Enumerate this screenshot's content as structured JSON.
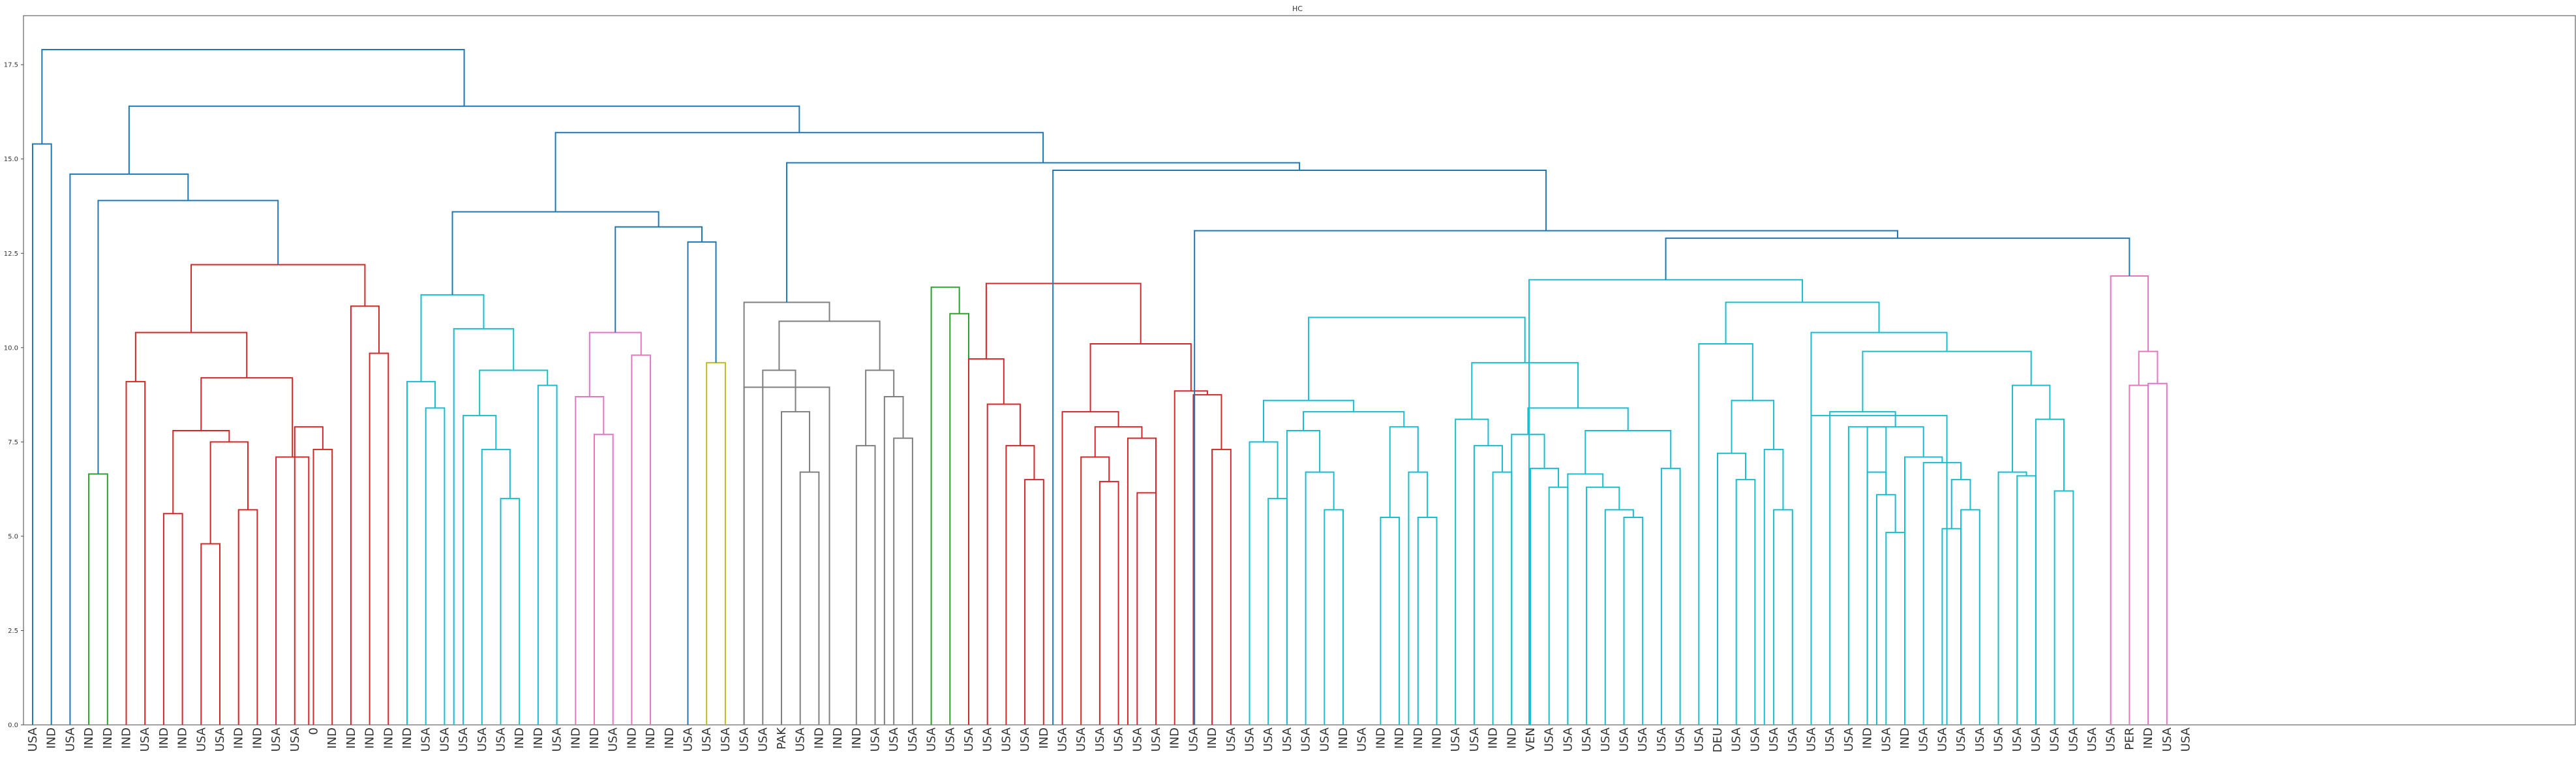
{
  "chart_data": {
    "type": "dendrogram",
    "title": "HC",
    "xlabel": "",
    "ylabel": "",
    "ylim": [
      0,
      18.8
    ],
    "yticks": [
      0.0,
      2.5,
      5.0,
      7.5,
      10.0,
      12.5,
      15.0,
      17.5
    ],
    "ytick_labels": [
      "0.0",
      "2.5",
      "5.0",
      "7.5",
      "10.0",
      "12.5",
      "15.0",
      "17.5"
    ],
    "grid": false,
    "leaf_labels": [
      "USA",
      "IND",
      "USA",
      "IND",
      "IND",
      "IND",
      "USA",
      "IND",
      "IND",
      "USA",
      "USA",
      "IND",
      "IND",
      "USA",
      "USA",
      "0",
      "IND",
      "IND",
      "IND",
      "IND",
      "IND",
      "USA",
      "USA",
      "USA",
      "USA",
      "USA",
      "IND",
      "IND",
      "USA",
      "IND",
      "IND",
      "USA",
      "IND",
      "IND",
      "IND",
      "USA",
      "USA",
      "USA",
      "USA",
      "USA",
      "PAK",
      "USA",
      "IND",
      "IND",
      "IND",
      "USA",
      "USA",
      "USA",
      "USA",
      "USA",
      "USA",
      "USA",
      "USA",
      "USA",
      "IND",
      "USA",
      "USA",
      "USA",
      "USA",
      "USA",
      "USA",
      "IND",
      "USA",
      "IND",
      "USA",
      "USA",
      "USA",
      "USA",
      "USA",
      "USA",
      "IND",
      "USA",
      "IND",
      "IND",
      "IND",
      "IND",
      "USA",
      "USA",
      "IND",
      "IND",
      "VEN",
      "USA",
      "USA",
      "USA",
      "USA",
      "USA",
      "USA",
      "USA",
      "USA",
      "USA",
      "DEU",
      "USA",
      "USA",
      "USA",
      "USA",
      "USA",
      "USA",
      "USA",
      "IND",
      "USA",
      "IND",
      "USA",
      "USA",
      "USA",
      "USA",
      "USA",
      "USA",
      "USA",
      "USA",
      "USA",
      "USA",
      "USA",
      "PER",
      "IND",
      "USA",
      "USA"
    ],
    "link_colors": {
      "above": "#1f77b4",
      "c1": "#ff7f0e",
      "c2": "#2ca02c",
      "c3": "#d62728",
      "c4": "#9467bd",
      "c5": "#8c564b",
      "c6": "#e377c2",
      "c7": "#7f7f7f",
      "c8": "#bcbd22",
      "c9": "#17becf"
    },
    "links": [
      {
        "x": [
          0,
          1
        ],
        "h": 15.4,
        "c": "above"
      },
      {
        "x": [
          3,
          4
        ],
        "h": 6.65,
        "c": "c2"
      },
      {
        "x": [
          7,
          8
        ],
        "h": 5.6,
        "c": "c3"
      },
      {
        "x": [
          9,
          10
        ],
        "h": 4.8,
        "c": "c3"
      },
      {
        "x": [
          11,
          12
        ],
        "h": 5.7,
        "c": "c3"
      },
      {
        "x": [
          9.5,
          11.5
        ],
        "h": 7.5,
        "c": "c3"
      },
      {
        "x": [
          7.5,
          10.5
        ],
        "h": 7.8,
        "c": "c3"
      },
      {
        "x": [
          15,
          16
        ],
        "h": 7.3,
        "c": "c3"
      },
      {
        "x": [
          14,
          15.5
        ],
        "h": 7.9,
        "c": "c3"
      },
      {
        "x": [
          13,
          14.75
        ],
        "h": 7.1,
        "c": "c3"
      },
      {
        "x": [
          9,
          13.875
        ],
        "h": 9.2,
        "c": "c3"
      },
      {
        "x": [
          5,
          6
        ],
        "h": 9.1,
        "c": "c3"
      },
      {
        "x": [
          5.5,
          11.4375
        ],
        "h": 10.4,
        "c": "c3"
      },
      {
        "x": [
          18,
          19
        ],
        "h": 9.85,
        "c": "c3"
      },
      {
        "x": [
          17,
          18.5
        ],
        "h": 11.1,
        "c": "c3"
      },
      {
        "x": [
          8.46875,
          17.75
        ],
        "h": 12.2,
        "c": "c3"
      },
      {
        "x": [
          3.5,
          13.109375
        ],
        "h": 13.9,
        "c": "above"
      },
      {
        "x": [
          2,
          8.3046875
        ],
        "h": 14.6,
        "c": "above"
      },
      {
        "x": [
          21,
          22
        ],
        "h": 8.4,
        "c": "c9"
      },
      {
        "x": [
          20,
          21.5
        ],
        "h": 9.1,
        "c": "c9"
      },
      {
        "x": [
          25,
          26
        ],
        "h": 6.0,
        "c": "c9"
      },
      {
        "x": [
          24,
          25.5
        ],
        "h": 7.3,
        "c": "c9"
      },
      {
        "x": [
          23,
          24.75
        ],
        "h": 8.2,
        "c": "c9"
      },
      {
        "x": [
          27,
          28
        ],
        "h": 9.0,
        "c": "c9"
      },
      {
        "x": [
          23.875,
          27.5
        ],
        "h": 9.4,
        "c": "c9"
      },
      {
        "x": [
          22.5,
          25.6875
        ],
        "h": 10.5,
        "c": "c9"
      },
      {
        "x": [
          20.75,
          24.09375
        ],
        "h": 11.4,
        "c": "c9"
      },
      {
        "x": [
          30,
          31
        ],
        "h": 7.7,
        "c": "c6"
      },
      {
        "x": [
          29,
          30.5
        ],
        "h": 8.7,
        "c": "c6"
      },
      {
        "x": [
          32,
          33
        ],
        "h": 9.8,
        "c": "c6"
      },
      {
        "x": [
          29.75,
          32.5
        ],
        "h": 10.4,
        "c": "c6"
      },
      {
        "x": [
          36,
          37
        ],
        "h": 9.6,
        "c": "c8"
      },
      {
        "x": [
          35,
          36.5
        ],
        "h": 12.8,
        "c": "above"
      },
      {
        "x": [
          31.125,
          35.75
        ],
        "h": 13.2,
        "c": "above"
      },
      {
        "x": [
          22.421875,
          33.4375
        ],
        "h": 13.6,
        "c": "above"
      },
      {
        "x": [
          41,
          42
        ],
        "h": 6.7,
        "c": "c7"
      },
      {
        "x": [
          40,
          41.5
        ],
        "h": 8.3,
        "c": "c7"
      },
      {
        "x": [
          39,
          40.75
        ],
        "h": 9.4,
        "c": "c7"
      },
      {
        "x": [
          44,
          45
        ],
        "h": 7.4,
        "c": "c7"
      },
      {
        "x": [
          46,
          47
        ],
        "h": 7.6,
        "c": "c7"
      },
      {
        "x": [
          45.5,
          46.5
        ],
        "h": 8.7,
        "c": "c7"
      },
      {
        "x": [
          44.5,
          46
        ],
        "h": 9.4,
        "c": "c7"
      },
      {
        "x": [
          39.875,
          45.25
        ],
        "h": 10.7,
        "c": "c7"
      },
      {
        "x": [
          38,
          42.5625
        ],
        "h": 8.95,
        "c": "c7"
      },
      {
        "x": [
          38,
          42.5625
        ],
        "h": 11.2,
        "c": "c7"
      },
      {
        "x": [
          49,
          50
        ],
        "h": 10.9,
        "c": "c2"
      },
      {
        "x": [
          48,
          49.5
        ],
        "h": 11.6,
        "c": "c2"
      },
      {
        "x": [
          53,
          54
        ],
        "h": 6.5,
        "c": "c3"
      },
      {
        "x": [
          52,
          53.5
        ],
        "h": 7.4,
        "c": "c3"
      },
      {
        "x": [
          51,
          52.75
        ],
        "h": 8.5,
        "c": "c3"
      },
      {
        "x": [
          50,
          51.875
        ],
        "h": 9.7,
        "c": "c3"
      },
      {
        "x": [
          57,
          58
        ],
        "h": 6.45,
        "c": "c3"
      },
      {
        "x": [
          56,
          57.5
        ],
        "h": 7.1,
        "c": "c3"
      },
      {
        "x": [
          59,
          60
        ],
        "h": 6.15,
        "c": "c3"
      },
      {
        "x": [
          58.5,
          60
        ],
        "h": 7.6,
        "c": "c3"
      },
      {
        "x": [
          56.75,
          59.25
        ],
        "h": 7.9,
        "c": "c3"
      },
      {
        "x": [
          55,
          58
        ],
        "h": 8.3,
        "c": "c3"
      },
      {
        "x": [
          63,
          64
        ],
        "h": 7.3,
        "c": "c3"
      },
      {
        "x": [
          62,
          63.5
        ],
        "h": 8.75,
        "c": "c3"
      },
      {
        "x": [
          61,
          62.75
        ],
        "h": 8.85,
        "c": "c3"
      },
      {
        "x": [
          56.5,
          61.875
        ],
        "h": 10.1,
        "c": "c3"
      },
      {
        "x": [
          50.9375,
          59.1875
        ],
        "h": 11.7,
        "c": "c3"
      },
      {
        "x": [
          66,
          67
        ],
        "h": 6.0,
        "c": "c9"
      },
      {
        "x": [
          65,
          66.5
        ],
        "h": 7.5,
        "c": "c9"
      },
      {
        "x": [
          69,
          70
        ],
        "h": 5.7,
        "c": "c9"
      },
      {
        "x": [
          68,
          69.5
        ],
        "h": 6.7,
        "c": "c9"
      },
      {
        "x": [
          67,
          68.75
        ],
        "h": 7.8,
        "c": "c9"
      },
      {
        "x": [
          72,
          73
        ],
        "h": 5.5,
        "c": "c9"
      },
      {
        "x": [
          74,
          75
        ],
        "h": 5.5,
        "c": "c9"
      },
      {
        "x": [
          73.5,
          74.5
        ],
        "h": 6.7,
        "c": "c9"
      },
      {
        "x": [
          72.5,
          74
        ],
        "h": 7.9,
        "c": "c9"
      },
      {
        "x": [
          67.875,
          73.25
        ],
        "h": 8.3,
        "c": "c9"
      },
      {
        "x": [
          65.75,
          70.5625
        ],
        "h": 8.6,
        "c": "c9"
      },
      {
        "x": [
          78,
          79
        ],
        "h": 6.7,
        "c": "c9"
      },
      {
        "x": [
          77,
          78.5
        ],
        "h": 7.4,
        "c": "c9"
      },
      {
        "x": [
          76,
          77.75
        ],
        "h": 8.1,
        "c": "c9"
      },
      {
        "x": [
          81,
          82
        ],
        "h": 6.3,
        "c": "c9"
      },
      {
        "x": [
          80,
          81.5
        ],
        "h": 6.8,
        "c": "c9"
      },
      {
        "x": [
          79,
          80.75
        ],
        "h": 7.7,
        "c": "c9"
      },
      {
        "x": [
          85,
          86
        ],
        "h": 5.5,
        "c": "c9"
      },
      {
        "x": [
          84,
          85.5
        ],
        "h": 5.7,
        "c": "c9"
      },
      {
        "x": [
          83,
          84.75
        ],
        "h": 6.3,
        "c": "c9"
      },
      {
        "x": [
          82,
          83.875
        ],
        "h": 6.65,
        "c": "c9"
      },
      {
        "x": [
          87,
          88
        ],
        "h": 6.8,
        "c": "c9"
      },
      {
        "x": [
          82.9375,
          87.5
        ],
        "h": 7.8,
        "c": "c9"
      },
      {
        "x": [
          79.875,
          85.21875
        ],
        "h": 8.4,
        "c": "c9"
      },
      {
        "x": [
          76.875,
          82.546875
        ],
        "h": 9.6,
        "c": "c9"
      },
      {
        "x": [
          68.15625,
          79.7109375
        ],
        "h": 10.8,
        "c": "c9"
      },
      {
        "x": [
          91,
          92
        ],
        "h": 6.5,
        "c": "c9"
      },
      {
        "x": [
          90,
          91.5
        ],
        "h": 7.2,
        "c": "c9"
      },
      {
        "x": [
          93,
          94
        ],
        "h": 5.7,
        "c": "c9"
      },
      {
        "x": [
          92.5,
          93.5
        ],
        "h": 7.3,
        "c": "c9"
      },
      {
        "x": [
          90.75,
          93
        ],
        "h": 8.6,
        "c": "c9"
      },
      {
        "x": [
          89,
          91.875
        ],
        "h": 10.1,
        "c": "c9"
      },
      {
        "x": [
          98,
          99
        ],
        "h": 6.7,
        "c": "c9"
      },
      {
        "x": [
          99,
          100
        ],
        "h": 5.1,
        "c": "c9"
      },
      {
        "x": [
          98.5,
          99.5
        ],
        "h": 6.1,
        "c": "c9"
      },
      {
        "x": [
          97,
          99
        ],
        "h": 7.9,
        "c": "c9"
      },
      {
        "x": [
          102,
          103
        ],
        "h": 5.2,
        "c": "c9"
      },
      {
        "x": [
          103,
          104
        ],
        "h": 5.7,
        "c": "c9"
      },
      {
        "x": [
          102.5,
          103.5
        ],
        "h": 6.5,
        "c": "c9"
      },
      {
        "x": [
          101,
          103
        ],
        "h": 6.95,
        "c": "c9"
      },
      {
        "x": [
          100,
          102
        ],
        "h": 7.1,
        "c": "c9"
      },
      {
        "x": [
          98,
          101
        ],
        "h": 7.9,
        "c": "c9"
      },
      {
        "x": [
          96,
          99.5
        ],
        "h": 8.3,
        "c": "c9"
      },
      {
        "x": [
          106,
          107
        ],
        "h": 6.6,
        "c": "c9"
      },
      {
        "x": [
          105,
          106.5
        ],
        "h": 6.7,
        "c": "c9"
      },
      {
        "x": [
          108,
          109
        ],
        "h": 6.2,
        "c": "c9"
      },
      {
        "x": [
          107,
          108.5
        ],
        "h": 8.1,
        "c": "c9"
      },
      {
        "x": [
          105.75,
          107.75
        ],
        "h": 9.0,
        "c": "c9"
      },
      {
        "x": [
          97.75,
          106.75
        ],
        "h": 9.9,
        "c": "c9"
      },
      {
        "x": [
          95,
          102.25
        ],
        "h": 8.2,
        "c": "c9"
      },
      {
        "x": [
          95,
          102.25
        ],
        "h": 10.4,
        "c": "c9"
      },
      {
        "x": [
          90.4375,
          98.625
        ],
        "h": 11.2,
        "c": "c9"
      },
      {
        "x": [
          79.93359375,
          94.53125
        ],
        "h": 11.8,
        "c": "c9"
      },
      {
        "x": [
          112,
          113
        ],
        "h": 9.0,
        "c": "c6"
      },
      {
        "x": [
          113,
          114
        ],
        "h": 9.05,
        "c": "c6"
      },
      {
        "x": [
          112.5,
          113.5
        ],
        "h": 9.9,
        "c": "c6"
      },
      {
        "x": [
          111,
          113
        ],
        "h": 11.9,
        "c": "c6"
      },
      {
        "x": [
          87.232421875,
          112
        ],
        "h": 12.9,
        "c": "above"
      },
      {
        "x": [
          62.0625,
          99.6162109375
        ],
        "h": 13.1,
        "c": "above"
      },
      {
        "x": [
          54.5,
          80.83935546875
        ],
        "h": 14.7,
        "c": "above"
      },
      {
        "x": [
          40.28125,
          67.669677734375
        ],
        "h": 14.9,
        "c": "above"
      },
      {
        "x": [
          27.9296875,
          53.9754638671875
        ],
        "h": 15.7,
        "c": "above"
      },
      {
        "x": [
          5.15234375,
          40.95257568359375
        ],
        "h": 16.4,
        "c": "above"
      },
      {
        "x": [
          0.5,
          23.052459716796875
        ],
        "h": 17.9,
        "c": "above"
      }
    ]
  }
}
